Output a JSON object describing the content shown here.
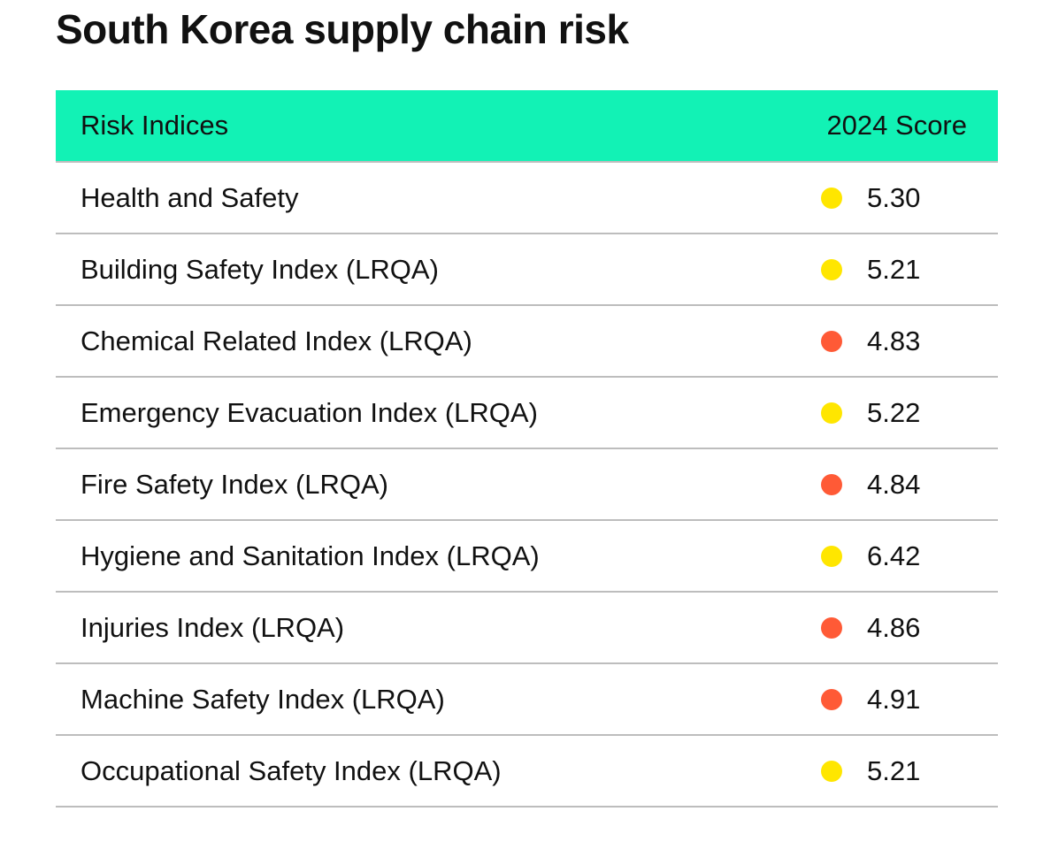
{
  "title": "South Korea supply chain risk",
  "colors": {
    "header": "#12F2B5",
    "medium": "#FFE600",
    "high": "#FF5A36"
  },
  "table": {
    "headers": [
      "Risk Indices",
      "2024 Score"
    ],
    "rows": [
      {
        "name": "Health and Safety",
        "score": "5.30",
        "level": "medium"
      },
      {
        "name": "Building Safety Index (LRQA)",
        "score": "5.21",
        "level": "medium"
      },
      {
        "name": "Chemical Related Index (LRQA)",
        "score": "4.83",
        "level": "high"
      },
      {
        "name": "Emergency Evacuation Index (LRQA)",
        "score": "5.22",
        "level": "medium"
      },
      {
        "name": "Fire Safety Index (LRQA)",
        "score": "4.84",
        "level": "high"
      },
      {
        "name": "Hygiene and Sanitation Index (LRQA)",
        "score": "6.42",
        "level": "medium"
      },
      {
        "name": "Injuries Index (LRQA)",
        "score": "4.86",
        "level": "high"
      },
      {
        "name": "Machine Safety Index (LRQA)",
        "score": "4.91",
        "level": "high"
      },
      {
        "name": "Occupational Safety Index (LRQA)",
        "score": "5.21",
        "level": "medium"
      }
    ]
  }
}
